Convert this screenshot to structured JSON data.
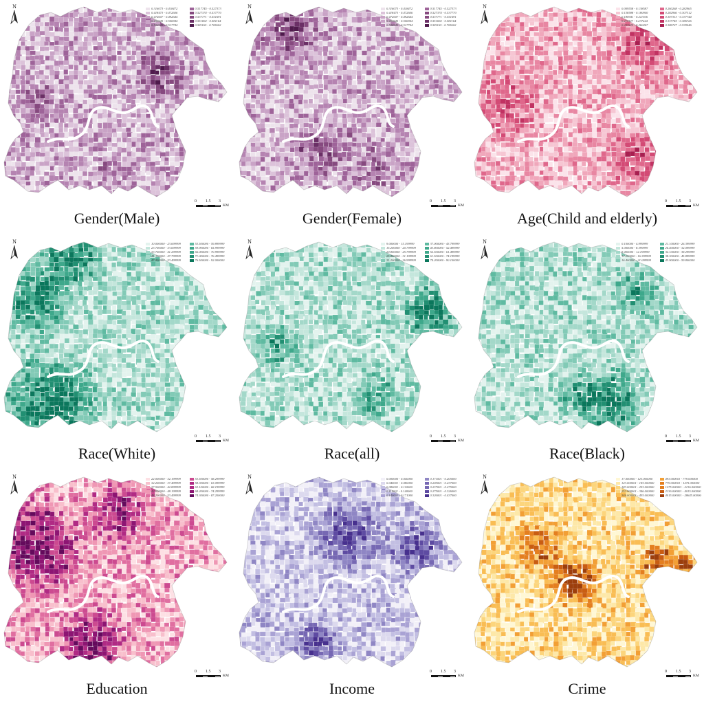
{
  "figure": {
    "panels": [
      {
        "id": "gender-male",
        "caption": "Gender(Male)",
        "palette": [
          "#ede3ec",
          "#dcc3da",
          "#c9a3c6",
          "#b583b1",
          "#9e6399",
          "#86497f",
          "#6b2f66",
          "#4f1a4c"
        ],
        "legend": [
          "0.316073 - 0.418472",
          "0.418473 - 0.472606",
          "0.472607 - 0.492644",
          "0.492645 - 0.506944",
          "0.506945 - 0.517744",
          "0.517745 - 0.527373",
          "0.527374 - 0.537770",
          "0.537771 - 0.551691",
          "0.551692 - 0.581164",
          "0.581165 - 0.705602"
        ]
      },
      {
        "id": "gender-female",
        "caption": "Gender(Female)",
        "palette": [
          "#ede3ec",
          "#dcc3da",
          "#c9a3c6",
          "#b583b1",
          "#9e6399",
          "#86497f",
          "#6b2f66",
          "#4f1a4c"
        ],
        "legend": [
          "0.316073 - 0.418472",
          "0.418473 - 0.472606",
          "0.472607 - 0.492644",
          "0.492645 - 0.506944",
          "0.506945 - 0.517744",
          "0.517745 - 0.527373",
          "0.527374 - 0.537770",
          "0.537771 - 0.551691",
          "0.551692 - 0.581164",
          "0.581165 - 0.705602"
        ]
      },
      {
        "id": "age",
        "caption": "Age(Child and elderly)",
        "palette": [
          "#fbe3ea",
          "#f6c6d3",
          "#f0a7bb",
          "#e886a2",
          "#df678b",
          "#d34a75",
          "#c13262",
          "#a81f50"
        ],
        "legend": [
          "0.009558 - 0.138587",
          "0.138588 - 0.180940",
          "0.180941 - 0.211306",
          "0.211307 - 0.237224",
          "0.237225 - 0.260267",
          "0.260268 - 0.282965",
          "0.282966 - 0.307312",
          "0.307313 - 0.337744",
          "0.337745 - 0.386726",
          "0.386727 - 0.539046"
        ]
      },
      {
        "id": "race-white",
        "caption": "Race(White)",
        "palette": [
          "#e3f3ee",
          "#c4e6dc",
          "#a3d8c9",
          "#82cab6",
          "#5fbaa1",
          "#3ea88b",
          "#218f72",
          "#0b775c"
        ],
        "legend": [
          "10.000000 - 23.699999",
          "23.700000 - 33.699999",
          "33.700000 - 41.299999",
          "41.300000 - 47.799999",
          "47.800000 - 53.499999",
          "53.500000 - 59.899999",
          "59.900000 - 65.999999",
          "66.000000 - 70.999999",
          "71.000000 - 76.499999",
          "76.500000 - 92.000000"
        ]
      },
      {
        "id": "race-all",
        "caption": "Race(all)",
        "palette": [
          "#e3f3ee",
          "#c4e6dc",
          "#a3d8c9",
          "#82cab6",
          "#5fbaa1",
          "#3ea88b",
          "#218f72",
          "#0b775c"
        ],
        "legend": [
          "9.000000 - 15.199999",
          "15.200000 - 20.799999",
          "20.800000 - 25.799999",
          "25.800000 - 31.199999",
          "31.200000 - 36.999999",
          "37.000000 - 43.799999",
          "43.800000 - 52.499999",
          "52.500000 - 61.499999",
          "61.500000 - 74.199999",
          "74.200000 - 90.100000"
        ]
      },
      {
        "id": "race-black",
        "caption": "Race(Black)",
        "palette": [
          "#e3f3ee",
          "#c4e6dc",
          "#a3d8c9",
          "#82cab6",
          "#5fbaa1",
          "#3ea88b",
          "#218f72",
          "#0b775c"
        ],
        "legend": [
          "0.100000 - 4.999999",
          "5.000000 - 8.399999",
          "8.400000 - 12.199999",
          "12.200000 - 16.399999",
          "16.400000 - 21.099999",
          "21.100000 - 26.399999",
          "26.400000 - 32.099999",
          "32.100000 - 38.299999",
          "38.300000 - 45.899999",
          "45.900000 - 59.800000"
        ]
      },
      {
        "id": "education",
        "caption": "Education",
        "palette": [
          "#fde0e4",
          "#f8bfcc",
          "#ef97b4",
          "#e06ea0",
          "#cc4a90",
          "#b02a84",
          "#8d1573",
          "#640a5c"
        ],
        "legend": [
          "22.000000 - 32.199999",
          "32.200000 - 37.499999",
          "37.500000 - 42.899999",
          "42.900000 - 48.199999",
          "48.200000 - 53.499999",
          "53.500000 - 58.299999",
          "58.300000 - 63.099999",
          "63.100000 - 68.199999",
          "68.200000 - 74.299999",
          "74.300000 - 87.200000"
        ]
      },
      {
        "id": "income",
        "caption": "Income",
        "palette": [
          "#f2f0f8",
          "#dcd9ee",
          "#c2bee2",
          "#a9a2d4",
          "#8f86c4",
          "#7668b3",
          "#5e4ba2",
          "#47308e"
        ],
        "legend": [
          "0.000000 - 0.040000",
          "0.040001 - 0.080000",
          "0.080001 - 0.110000",
          "0.110001 - 0.140000",
          "0.140001 - 0.171000",
          "0.171001 - 0.205000",
          "0.205001 - 0.237000",
          "0.237001 - 0.275000",
          "0.275001 - 0.326000",
          "0.326001 - 0.437000"
        ]
      },
      {
        "id": "crime",
        "caption": "Crime",
        "palette": [
          "#fff7d4",
          "#fde8a8",
          "#fcd57c",
          "#f9bd54",
          "#f29f35",
          "#e47f1f",
          "#c95d12",
          "#9c3e0c"
        ],
        "legend": [
          "17.000000 - 123.000000",
          "123.000001 - 183.000000",
          "183.000001 - 253.000000",
          "253.000001 - 346.000000",
          "346.000001 - 493.000000",
          "493.000001 - 779.000000",
          "779.000001 - 1275.000000",
          "1275.000001 - 2136.000000",
          "2136.000001 - 4015.000000",
          "4015.000001 - 28645.000000"
        ]
      }
    ],
    "north_label": "N",
    "scale": {
      "ticks": [
        "0",
        "1.5",
        "3"
      ],
      "unit": "KM"
    }
  }
}
